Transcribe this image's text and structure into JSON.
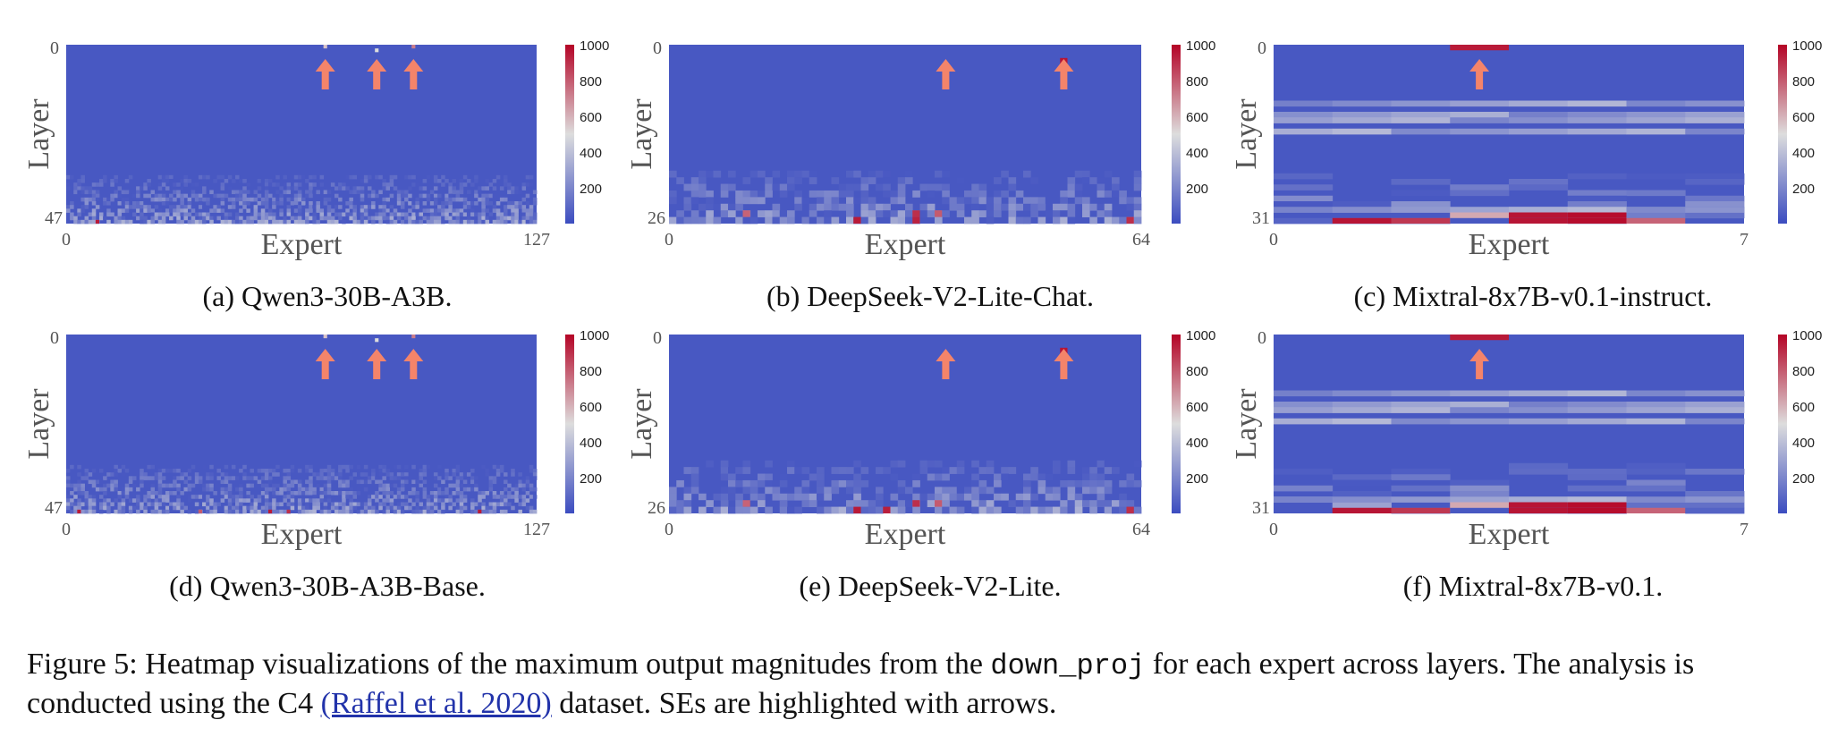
{
  "figure": {
    "number": "Figure 5:",
    "caption_part1": "Heatmap visualizations of the maximum output magnitudes from the",
    "caption_code": "down_proj",
    "caption_part2": "for each expert across layers. The analysis is conducted using the C4",
    "caption_citation": "(Raffel et al. 2020)",
    "caption_part3": "dataset. SEs are highlighted with arrows."
  },
  "colors": {
    "base": "#3b4cc0",
    "mid": "#dddddd",
    "high": "#b40426",
    "arrow": "#f4846a"
  },
  "colorbar": {
    "ticks": [
      "1000",
      "800",
      "600",
      "400",
      "200"
    ],
    "vmax": 1000
  },
  "chart_data": [
    {
      "type": "heatmap",
      "subcaption": "(a) Qwen3-30B-A3B.",
      "xlabel": "Expert",
      "ylabel": "Layer",
      "x_ticks": [
        "0",
        "127"
      ],
      "y_ticks": [
        "0",
        "47"
      ],
      "n_experts": 128,
      "n_layers": 48,
      "background_value": 40,
      "hot_cells": [
        {
          "layer": 0,
          "expert": 70,
          "value": 560
        },
        {
          "layer": 1,
          "expert": 84,
          "value": 500
        },
        {
          "layer": 0,
          "expert": 94,
          "value": 720
        },
        {
          "layer": 47,
          "expert": 8,
          "value": 950
        }
      ],
      "highlight_arrows": [
        70,
        84,
        94
      ]
    },
    {
      "type": "heatmap",
      "subcaption": "(b) DeepSeek-V2-Lite-Chat.",
      "xlabel": "Expert",
      "ylabel": "Layer",
      "x_ticks": [
        "0",
        "64"
      ],
      "y_ticks": [
        "0",
        "26"
      ],
      "n_experts": 64,
      "n_layers": 27,
      "background_value": 40,
      "hot_cells": [
        {
          "layer": 3,
          "expert": 37,
          "value": 540
        },
        {
          "layer": 2,
          "expert": 53,
          "value": 960
        },
        {
          "layer": 25,
          "expert": 10,
          "value": 780
        },
        {
          "layer": 26,
          "expert": 25,
          "value": 950
        },
        {
          "layer": 26,
          "expert": 33,
          "value": 930
        },
        {
          "layer": 25,
          "expert": 33,
          "value": 900
        },
        {
          "layer": 25,
          "expert": 36,
          "value": 800
        },
        {
          "layer": 26,
          "expert": 62,
          "value": 900
        }
      ],
      "highlight_arrows": [
        37,
        53
      ]
    },
    {
      "type": "heatmap",
      "subcaption": "(c) Mixtral-8x7B-v0.1-instruct.",
      "xlabel": "Expert",
      "ylabel": "Layer",
      "x_ticks": [
        "0",
        "7"
      ],
      "y_ticks": [
        "0",
        "31"
      ],
      "n_experts": 8,
      "n_layers": 32,
      "background_value": 40,
      "hot_cells": [
        {
          "layer": 0,
          "expert": 3,
          "value": 950
        },
        {
          "layer": 30,
          "expert": 3,
          "value": 620
        },
        {
          "layer": 31,
          "expert": 1,
          "value": 960
        },
        {
          "layer": 31,
          "expert": 2,
          "value": 880
        },
        {
          "layer": 30,
          "expert": 4,
          "value": 960
        },
        {
          "layer": 31,
          "expert": 4,
          "value": 960
        },
        {
          "layer": 30,
          "expert": 5,
          "value": 980
        },
        {
          "layer": 31,
          "expert": 5,
          "value": 980
        },
        {
          "layer": 31,
          "expert": 6,
          "value": 780
        }
      ],
      "highlight_arrows": [
        3
      ]
    },
    {
      "type": "heatmap",
      "subcaption": "(d) Qwen3-30B-A3B-Base.",
      "xlabel": "Expert",
      "ylabel": "Layer",
      "x_ticks": [
        "0",
        "127"
      ],
      "y_ticks": [
        "0",
        "47"
      ],
      "n_experts": 128,
      "n_layers": 48,
      "background_value": 40,
      "hot_cells": [
        {
          "layer": 0,
          "expert": 70,
          "value": 560
        },
        {
          "layer": 1,
          "expert": 84,
          "value": 500
        },
        {
          "layer": 0,
          "expert": 94,
          "value": 720
        },
        {
          "layer": 47,
          "expert": 3,
          "value": 950
        },
        {
          "layer": 47,
          "expert": 36,
          "value": 800
        },
        {
          "layer": 47,
          "expert": 55,
          "value": 950
        },
        {
          "layer": 47,
          "expert": 60,
          "value": 900
        },
        {
          "layer": 47,
          "expert": 112,
          "value": 950
        }
      ],
      "highlight_arrows": [
        70,
        84,
        94
      ]
    },
    {
      "type": "heatmap",
      "subcaption": "(e) DeepSeek-V2-Lite.",
      "xlabel": "Expert",
      "ylabel": "Layer",
      "x_ticks": [
        "0",
        "64"
      ],
      "y_ticks": [
        "0",
        "26"
      ],
      "n_experts": 64,
      "n_layers": 27,
      "background_value": 40,
      "hot_cells": [
        {
          "layer": 3,
          "expert": 37,
          "value": 540
        },
        {
          "layer": 2,
          "expert": 53,
          "value": 960
        },
        {
          "layer": 25,
          "expert": 10,
          "value": 780
        },
        {
          "layer": 26,
          "expert": 25,
          "value": 950
        },
        {
          "layer": 26,
          "expert": 29,
          "value": 940
        },
        {
          "layer": 25,
          "expert": 33,
          "value": 900
        },
        {
          "layer": 25,
          "expert": 36,
          "value": 800
        },
        {
          "layer": 26,
          "expert": 62,
          "value": 900
        }
      ],
      "highlight_arrows": [
        37,
        53
      ]
    },
    {
      "type": "heatmap",
      "subcaption": "(f) Mixtral-8x7B-v0.1.",
      "xlabel": "Expert",
      "ylabel": "Layer",
      "x_ticks": [
        "0",
        "7"
      ],
      "y_ticks": [
        "0",
        "31"
      ],
      "n_experts": 8,
      "n_layers": 32,
      "background_value": 40,
      "hot_cells": [
        {
          "layer": 0,
          "expert": 3,
          "value": 950
        },
        {
          "layer": 30,
          "expert": 3,
          "value": 620
        },
        {
          "layer": 31,
          "expert": 1,
          "value": 960
        },
        {
          "layer": 31,
          "expert": 2,
          "value": 880
        },
        {
          "layer": 30,
          "expert": 4,
          "value": 960
        },
        {
          "layer": 31,
          "expert": 4,
          "value": 960
        },
        {
          "layer": 30,
          "expert": 5,
          "value": 980
        },
        {
          "layer": 31,
          "expert": 5,
          "value": 980
        },
        {
          "layer": 31,
          "expert": 6,
          "value": 780
        }
      ],
      "highlight_arrows": [
        3
      ]
    }
  ]
}
